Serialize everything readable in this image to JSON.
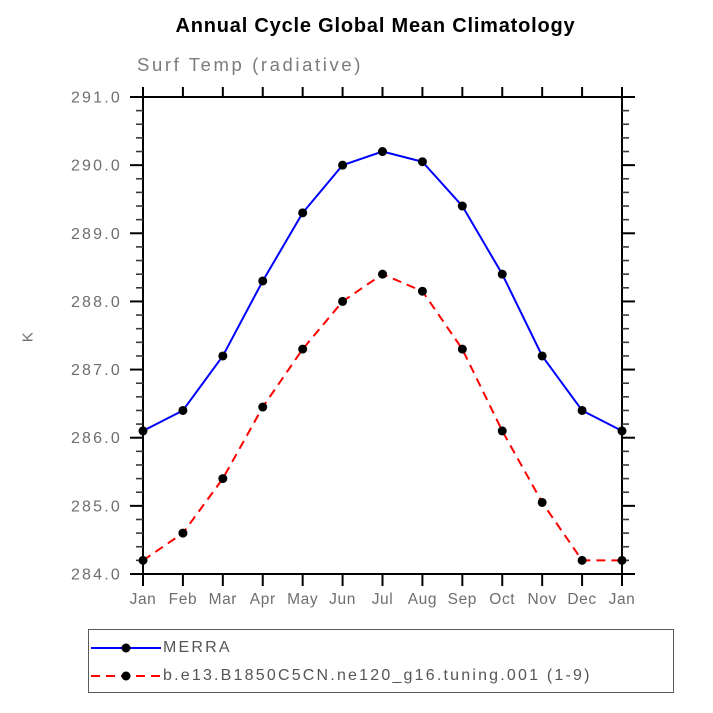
{
  "page": {
    "background_color": "#ffffff"
  },
  "header": {
    "title": "Annual Cycle Global Mean Climatology",
    "subtitle": "Surf Temp (radiative)"
  },
  "chart_data": {
    "type": "line",
    "title": "Annual Cycle Global Mean Climatology",
    "subtitle": "Surf Temp (radiative)",
    "ylabel": "K",
    "xlabel": "",
    "categories": [
      "Jan",
      "Feb",
      "Mar",
      "Apr",
      "May",
      "Jun",
      "Jul",
      "Aug",
      "Sep",
      "Oct",
      "Nov",
      "Dec",
      "Jan"
    ],
    "ylim": [
      284.0,
      291.0
    ],
    "ytick_interval": 1.0,
    "yminor_interval": 0.2,
    "ytick_labels": [
      "284.0",
      "285.0",
      "286.0",
      "287.0",
      "288.0",
      "289.0",
      "290.0",
      "291.0"
    ],
    "grid": false,
    "frame_ticks": "all-four-sides-outward",
    "legend_position": "bottom-left-outside",
    "series": [
      {
        "name": "MERRA",
        "color": "#0000ff",
        "line_style": "solid",
        "line_width": 2,
        "marker": "filled-circle",
        "marker_color": "#000000",
        "values": [
          286.1,
          286.4,
          287.2,
          288.3,
          289.3,
          290.0,
          290.2,
          290.05,
          289.4,
          288.4,
          287.2,
          286.4,
          286.1
        ]
      },
      {
        "name": "b.e13.B1850C5CN.ne120_g16.tuning.001 (1-9)",
        "color": "#ff0000",
        "line_style": "dashed",
        "line_width": 2,
        "marker": "filled-circle",
        "marker_color": "#000000",
        "values": [
          284.2,
          284.6,
          285.4,
          286.45,
          287.3,
          288.0,
          288.4,
          288.15,
          287.3,
          286.1,
          285.05,
          284.2,
          284.2
        ]
      }
    ],
    "colors": {
      "axis": "#000000",
      "minor_tick": "#3a3a3a",
      "tick_label": "#6e6e6e",
      "legend_border": "#5a5a5a",
      "legend_text": "#555555"
    }
  }
}
